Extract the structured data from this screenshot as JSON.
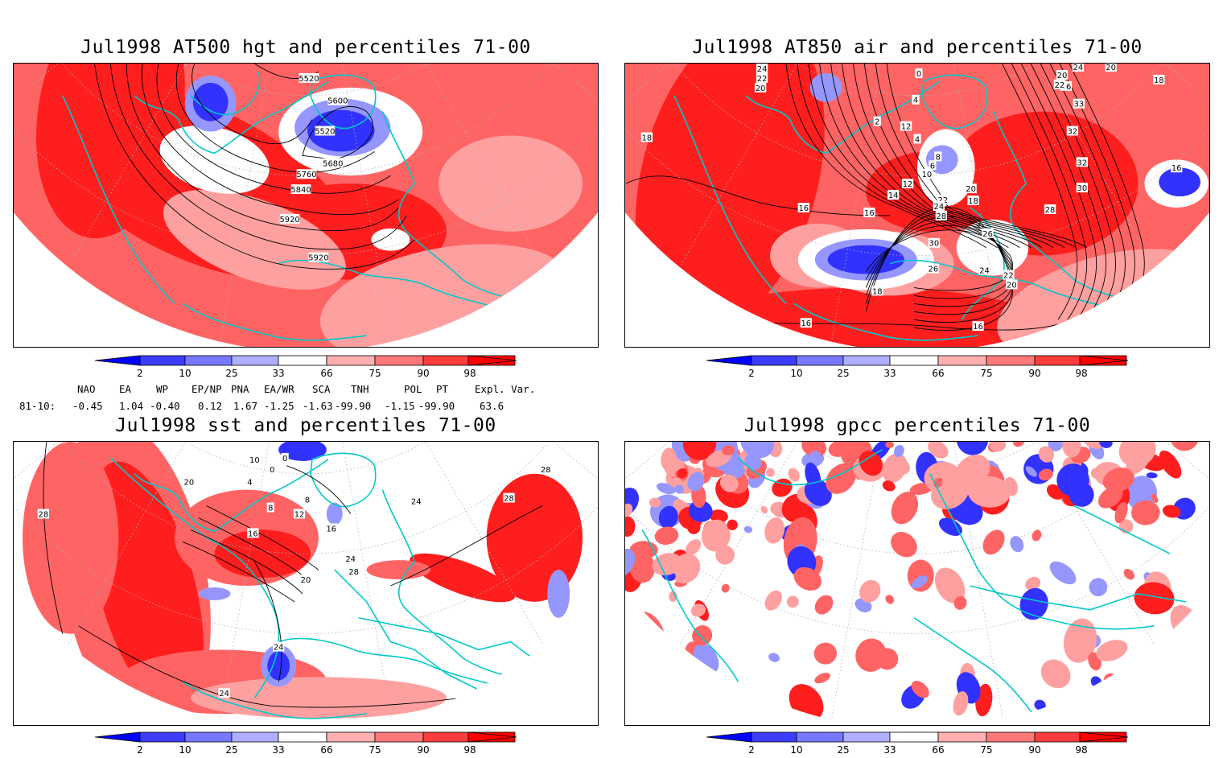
{
  "panels": [
    {
      "id": "hgt500",
      "title": "Jul1998 AT500 hgt and percentiles 71-00",
      "contour_labels": [
        "5520",
        "5600",
        "5520",
        "5680",
        "5760",
        "5840",
        "5920",
        "5920"
      ]
    },
    {
      "id": "air850",
      "title": "Jul1998 AT850 air and percentiles 71-00",
      "contour_labels": [
        "24",
        "22",
        "20",
        "0",
        "4",
        "2",
        "12",
        "4",
        "8",
        "6",
        "10",
        "12",
        "14",
        "16",
        "16",
        "18",
        "20",
        "22",
        "24",
        "28",
        "26",
        "30",
        "26",
        "24",
        "22",
        "20",
        "18",
        "18",
        "16",
        "16",
        "28",
        "30",
        "32",
        "32",
        "33",
        "26",
        "20",
        "22",
        "24",
        "20",
        "18",
        "16"
      ]
    },
    {
      "id": "sst",
      "title": "Jul1998 sst and percentiles 71-00",
      "contour_labels": [
        "28",
        "20",
        "10",
        "8",
        "4",
        "0",
        "0",
        "12",
        "16",
        "8",
        "16",
        "20",
        "24",
        "24",
        "24",
        "28",
        "28",
        "24",
        "28"
      ]
    },
    {
      "id": "gpcc",
      "title": "Jul1998 gpcc percentiles 71-00",
      "contour_labels": []
    }
  ],
  "colorbar": {
    "ticks": [
      "2",
      "10",
      "25",
      "33",
      "66",
      "75",
      "90",
      "98"
    ],
    "colors": [
      "#0000ff",
      "#3c3cff",
      "#7878ff",
      "#afafff",
      "#ffffff",
      "#ffafaf",
      "#ff7878",
      "#ff3c3c",
      "#ff0000"
    ]
  },
  "indices": {
    "headers": [
      "NAO",
      "EA",
      "WP",
      "EP/NP",
      "PNA",
      "EA/WR",
      "SCA",
      "TNH",
      "POL",
      "PT",
      "Expl. Var."
    ],
    "row_label": "81-10:",
    "values": [
      "-0.45",
      "1.04",
      "-0.40",
      "0.12",
      "1.67",
      "-1.25",
      "-1.63",
      "-99.90",
      "-1.15",
      "-99.90",
      "63.6"
    ]
  },
  "colors": {
    "land_outline": "#00c8c8",
    "strong_red": "#ff1e1e",
    "mid_red": "#ff6464",
    "light_red": "#ffa0a0",
    "blue": "#3232ff",
    "light_blue": "#9696ff"
  }
}
